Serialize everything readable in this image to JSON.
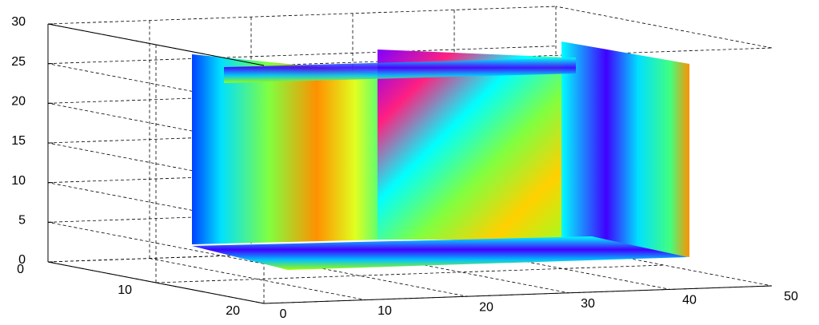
{
  "chart_data": {
    "type": "slice3d",
    "xlim": [
      0,
      50
    ],
    "xticks": [
      0,
      10,
      20,
      30,
      40,
      50
    ],
    "ylim": [
      0,
      20
    ],
    "yticks": [
      0,
      10,
      20
    ],
    "zlim": [
      0,
      30
    ],
    "zticks": [
      0,
      5,
      10,
      15,
      20,
      25,
      30
    ],
    "grid": true
  }
}
